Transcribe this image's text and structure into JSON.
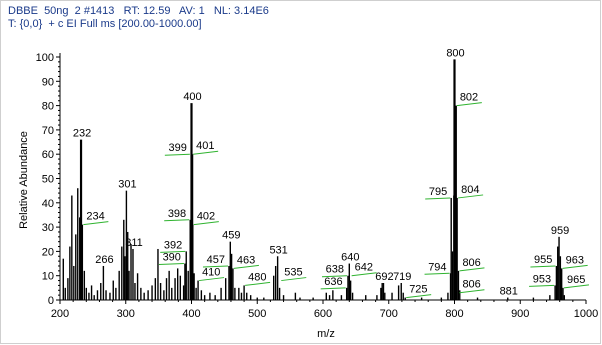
{
  "header": {
    "line1": "DBBE  50ng  2 #1413   RT: 12.59   AV: 1   NL: 3.14E6",
    "line2": "T: {0,0}  + c EI Full ms [200.00-1000.00]"
  },
  "chart_data": {
    "type": "bar",
    "xlabel": "m/z",
    "ylabel": "Relative Abundance",
    "xlim": [
      200,
      1000
    ],
    "ylim": [
      0,
      100
    ],
    "xticks": [
      200,
      300,
      400,
      500,
      600,
      700,
      800,
      900,
      1000
    ],
    "yticks": [
      0,
      10,
      20,
      30,
      40,
      50,
      60,
      70,
      80,
      90,
      100
    ],
    "grid": false,
    "colors": {
      "peaks": "#000000",
      "header_text": "#1a3a8a",
      "annotation_lines": "#2fb32f"
    },
    "peaks": [
      {
        "mz": 205,
        "y": 17
      },
      {
        "mz": 208,
        "y": 5
      },
      {
        "mz": 212,
        "y": 9
      },
      {
        "mz": 215,
        "y": 22
      },
      {
        "mz": 218,
        "y": 43
      },
      {
        "mz": 221,
        "y": 14
      },
      {
        "mz": 224,
        "y": 27
      },
      {
        "mz": 227,
        "y": 46
      },
      {
        "mz": 230,
        "y": 34
      },
      {
        "mz": 232,
        "y": 66
      },
      {
        "mz": 234,
        "y": 31
      },
      {
        "mz": 237,
        "y": 12
      },
      {
        "mz": 240,
        "y": 5
      },
      {
        "mz": 244,
        "y": 3
      },
      {
        "mz": 248,
        "y": 6
      },
      {
        "mz": 252,
        "y": 2
      },
      {
        "mz": 257,
        "y": 4
      },
      {
        "mz": 262,
        "y": 7
      },
      {
        "mz": 266,
        "y": 14
      },
      {
        "mz": 270,
        "y": 4
      },
      {
        "mz": 276,
        "y": 3
      },
      {
        "mz": 281,
        "y": 8
      },
      {
        "mz": 285,
        "y": 5
      },
      {
        "mz": 290,
        "y": 12
      },
      {
        "mz": 294,
        "y": 22
      },
      {
        "mz": 297,
        "y": 33
      },
      {
        "mz": 299,
        "y": 18
      },
      {
        "mz": 301,
        "y": 45
      },
      {
        "mz": 303,
        "y": 28
      },
      {
        "mz": 305,
        "y": 12
      },
      {
        "mz": 308,
        "y": 23
      },
      {
        "mz": 311,
        "y": 21
      },
      {
        "mz": 314,
        "y": 7
      },
      {
        "mz": 318,
        "y": 11
      },
      {
        "mz": 323,
        "y": 5
      },
      {
        "mz": 328,
        "y": 3
      },
      {
        "mz": 334,
        "y": 4
      },
      {
        "mz": 340,
        "y": 6
      },
      {
        "mz": 345,
        "y": 9
      },
      {
        "mz": 349,
        "y": 21
      },
      {
        "mz": 353,
        "y": 7
      },
      {
        "mz": 358,
        "y": 4
      },
      {
        "mz": 362,
        "y": 9
      },
      {
        "mz": 366,
        "y": 12
      },
      {
        "mz": 370,
        "y": 5
      },
      {
        "mz": 375,
        "y": 9
      },
      {
        "mz": 379,
        "y": 13
      },
      {
        "mz": 383,
        "y": 10
      },
      {
        "mz": 388,
        "y": 6
      },
      {
        "mz": 390,
        "y": 15
      },
      {
        "mz": 392,
        "y": 20
      },
      {
        "mz": 395,
        "y": 12
      },
      {
        "mz": 398,
        "y": 33
      },
      {
        "mz": 400,
        "y": 81
      },
      {
        "mz": 401,
        "y": 60
      },
      {
        "mz": 402,
        "y": 31
      },
      {
        "mz": 404,
        "y": 11
      },
      {
        "mz": 407,
        "y": 5
      },
      {
        "mz": 410,
        "y": 8
      },
      {
        "mz": 415,
        "y": 4
      },
      {
        "mz": 420,
        "y": 2
      },
      {
        "mz": 428,
        "y": 3
      },
      {
        "mz": 436,
        "y": 2
      },
      {
        "mz": 445,
        "y": 5
      },
      {
        "mz": 452,
        "y": 9
      },
      {
        "mz": 457,
        "y": 14
      },
      {
        "mz": 459,
        "y": 24
      },
      {
        "mz": 461,
        "y": 19
      },
      {
        "mz": 463,
        "y": 13
      },
      {
        "mz": 466,
        "y": 5
      },
      {
        "mz": 472,
        "y": 5
      },
      {
        "mz": 476,
        "y": 3
      },
      {
        "mz": 480,
        "y": 6
      },
      {
        "mz": 484,
        "y": 3
      },
      {
        "mz": 490,
        "y": 2
      },
      {
        "mz": 500,
        "y": 1
      },
      {
        "mz": 510,
        "y": 1
      },
      {
        "mz": 525,
        "y": 10
      },
      {
        "mz": 528,
        "y": 14
      },
      {
        "mz": 531,
        "y": 18
      },
      {
        "mz": 534,
        "y": 5
      },
      {
        "mz": 540,
        "y": 2
      },
      {
        "mz": 558,
        "y": 3
      },
      {
        "mz": 565,
        "y": 1
      },
      {
        "mz": 585,
        "y": 1
      },
      {
        "mz": 605,
        "y": 3
      },
      {
        "mz": 610,
        "y": 2
      },
      {
        "mz": 615,
        "y": 4
      },
      {
        "mz": 628,
        "y": 2
      },
      {
        "mz": 636,
        "y": 5
      },
      {
        "mz": 638,
        "y": 10
      },
      {
        "mz": 640,
        "y": 15
      },
      {
        "mz": 642,
        "y": 8
      },
      {
        "mz": 645,
        "y": 3
      },
      {
        "mz": 665,
        "y": 2
      },
      {
        "mz": 682,
        "y": 2
      },
      {
        "mz": 688,
        "y": 5
      },
      {
        "mz": 690,
        "y": 7
      },
      {
        "mz": 692,
        "y": 7
      },
      {
        "mz": 694,
        "y": 3
      },
      {
        "mz": 705,
        "y": 3
      },
      {
        "mz": 715,
        "y": 6
      },
      {
        "mz": 719,
        "y": 7
      },
      {
        "mz": 722,
        "y": 3
      },
      {
        "mz": 725,
        "y": 1
      },
      {
        "mz": 750,
        "y": 1
      },
      {
        "mz": 780,
        "y": 1
      },
      {
        "mz": 790,
        "y": 3
      },
      {
        "mz": 794,
        "y": 11
      },
      {
        "mz": 795,
        "y": 42
      },
      {
        "mz": 797,
        "y": 20
      },
      {
        "mz": 799,
        "y": 43
      },
      {
        "mz": 800,
        "y": 99
      },
      {
        "mz": 802,
        "y": 80
      },
      {
        "mz": 804,
        "y": 42
      },
      {
        "mz": 806,
        "y": 12
      },
      {
        "mz": 808,
        "y": 4
      },
      {
        "mz": 835,
        "y": 1
      },
      {
        "mz": 881,
        "y": 1
      },
      {
        "mz": 920,
        "y": 1
      },
      {
        "mz": 945,
        "y": 2
      },
      {
        "mz": 953,
        "y": 6
      },
      {
        "mz": 955,
        "y": 14
      },
      {
        "mz": 957,
        "y": 22
      },
      {
        "mz": 959,
        "y": 26
      },
      {
        "mz": 961,
        "y": 18
      },
      {
        "mz": 963,
        "y": 13
      },
      {
        "mz": 965,
        "y": 5
      },
      {
        "mz": 967,
        "y": 2
      }
    ],
    "labels": [
      {
        "text": "232",
        "mz": 232,
        "y": 66,
        "type": "apex"
      },
      {
        "text": "234",
        "mz": 234,
        "y": 31,
        "type": "side"
      },
      {
        "text": "266",
        "mz": 266,
        "y": 14,
        "type": "apex"
      },
      {
        "text": "301",
        "mz": 301,
        "y": 45,
        "type": "apex"
      },
      {
        "text": "311",
        "mz": 311,
        "y": 21,
        "type": "apex"
      },
      {
        "text": "400",
        "mz": 400,
        "y": 81,
        "type": "apex"
      },
      {
        "text": "401",
        "mz": 401,
        "y": 60,
        "type": "side"
      },
      {
        "text": "399",
        "mz": 399,
        "y": 60,
        "type": "side"
      },
      {
        "text": "398",
        "mz": 398,
        "y": 33,
        "type": "side"
      },
      {
        "text": "402",
        "mz": 402,
        "y": 31,
        "type": "side"
      },
      {
        "text": "392",
        "mz": 392,
        "y": 20,
        "type": "side"
      },
      {
        "text": "390",
        "mz": 390,
        "y": 15,
        "type": "side"
      },
      {
        "text": "457",
        "mz": 457,
        "y": 14,
        "type": "side"
      },
      {
        "text": "410",
        "mz": 410,
        "y": 8,
        "type": "side"
      },
      {
        "text": "459",
        "mz": 459,
        "y": 24,
        "type": "apex"
      },
      {
        "text": "463",
        "mz": 463,
        "y": 13,
        "type": "side"
      },
      {
        "text": "480",
        "mz": 480,
        "y": 6,
        "type": "side"
      },
      {
        "text": "531",
        "mz": 531,
        "y": 18,
        "type": "apex"
      },
      {
        "text": "535",
        "mz": 535,
        "y": 8,
        "type": "side"
      },
      {
        "text": "640",
        "mz": 640,
        "y": 15,
        "type": "apex"
      },
      {
        "text": "638",
        "mz": 638,
        "y": 10,
        "type": "side"
      },
      {
        "text": "642",
        "mz": 642,
        "y": 10,
        "type": "side"
      },
      {
        "text": "636",
        "mz": 636,
        "y": 5,
        "type": "side"
      },
      {
        "text": "692",
        "mz": 692,
        "y": 7,
        "type": "apex"
      },
      {
        "text": "719",
        "mz": 719,
        "y": 7,
        "type": "apex"
      },
      {
        "text": "725",
        "mz": 725,
        "y": 1,
        "type": "side"
      },
      {
        "text": "800",
        "mz": 800,
        "y": 99,
        "type": "apex"
      },
      {
        "text": "802",
        "mz": 802,
        "y": 80,
        "type": "side"
      },
      {
        "text": "795",
        "mz": 795,
        "y": 42,
        "type": "side"
      },
      {
        "text": "804",
        "mz": 804,
        "y": 42,
        "type": "side"
      },
      {
        "text": "794",
        "mz": 794,
        "y": 11,
        "type": "side"
      },
      {
        "text": "806",
        "mz": 806,
        "y": 12,
        "type": "side"
      },
      {
        "text": "806",
        "mz": 806,
        "y": 3,
        "type": "side"
      },
      {
        "text": "881",
        "mz": 881,
        "y": 1,
        "type": "apex"
      },
      {
        "text": "959",
        "mz": 959,
        "y": 26,
        "type": "apex"
      },
      {
        "text": "955",
        "mz": 955,
        "y": 14,
        "type": "side"
      },
      {
        "text": "963",
        "mz": 963,
        "y": 13,
        "type": "side"
      },
      {
        "text": "953",
        "mz": 953,
        "y": 6,
        "type": "side"
      },
      {
        "text": "965",
        "mz": 965,
        "y": 5,
        "type": "side"
      }
    ]
  }
}
